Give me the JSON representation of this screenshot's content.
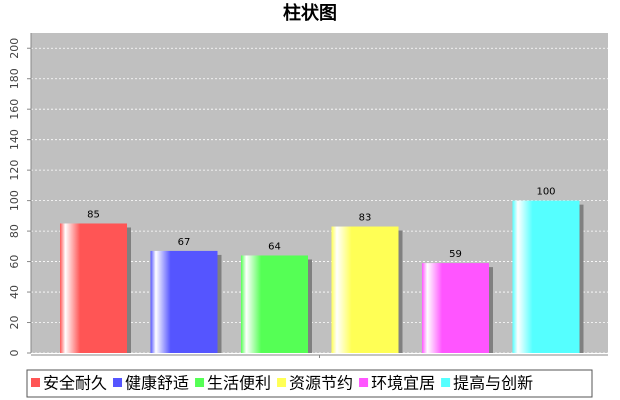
{
  "chart_data": {
    "type": "bar",
    "title": "柱状图",
    "categories": [
      null
    ],
    "series": [
      {
        "name": "安全耐久",
        "color": "#ff5555",
        "values": [
          85
        ]
      },
      {
        "name": "健康舒适",
        "color": "#5555ff",
        "values": [
          67
        ]
      },
      {
        "name": "生活便利",
        "color": "#55ff55",
        "values": [
          64
        ]
      },
      {
        "name": "资源节约",
        "color": "#ffff55",
        "values": [
          83
        ]
      },
      {
        "name": "环境宜居",
        "color": "#ff55ff",
        "values": [
          59
        ]
      },
      {
        "name": "提高与创新",
        "color": "#55ffff",
        "values": [
          100
        ]
      }
    ],
    "ylim": [
      0,
      210
    ],
    "yticks": [
      0,
      20,
      40,
      60,
      80,
      100,
      120,
      140,
      160,
      180,
      200
    ],
    "grid": true,
    "legend": "bottom"
  }
}
